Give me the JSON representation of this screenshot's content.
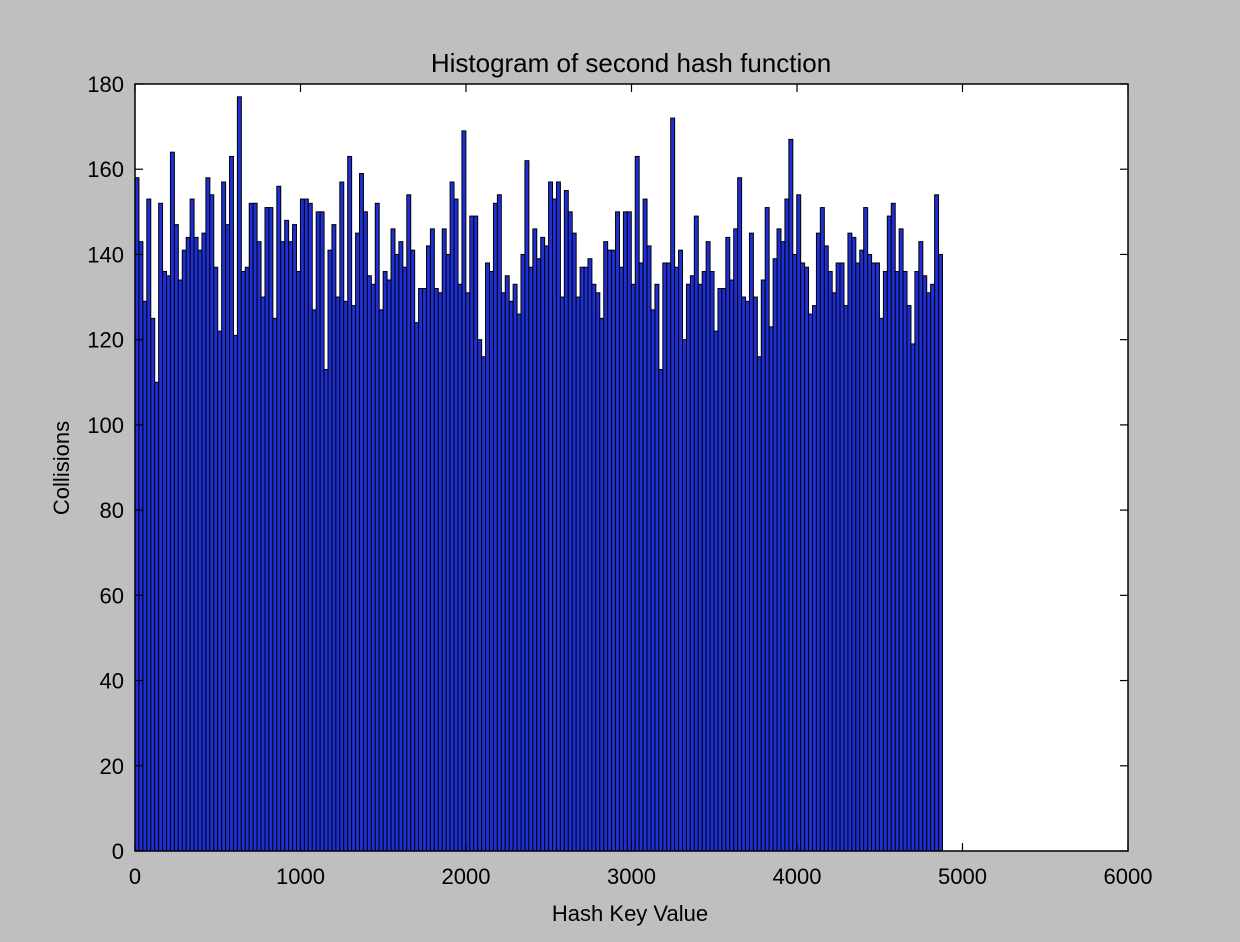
{
  "chart_data": {
    "type": "bar",
    "title": "Histogram of second hash function",
    "xlabel": "Hash Key Value",
    "ylabel": "Collisions",
    "xlim": [
      0,
      6000
    ],
    "ylim": [
      0,
      180
    ],
    "xticks": [
      0,
      1000,
      2000,
      3000,
      4000,
      5000,
      6000
    ],
    "yticks": [
      0,
      20,
      40,
      60,
      80,
      100,
      120,
      140,
      160,
      180
    ],
    "bin_width": 23.8,
    "bin_start": 0,
    "grid": false,
    "bar_color": "#1f2fd6",
    "values": [
      158,
      143,
      129,
      153,
      125,
      110,
      152,
      136,
      135,
      164,
      147,
      134,
      141,
      144,
      153,
      144,
      141,
      145,
      158,
      154,
      137,
      122,
      157,
      147,
      163,
      121,
      177,
      136,
      137,
      152,
      152,
      143,
      130,
      151,
      151,
      125,
      156,
      143,
      148,
      143,
      147,
      136,
      153,
      153,
      152,
      127,
      150,
      150,
      113,
      141,
      147,
      130,
      157,
      129,
      163,
      128,
      145,
      159,
      150,
      135,
      133,
      152,
      127,
      136,
      134,
      146,
      140,
      143,
      137,
      154,
      141,
      124,
      132,
      132,
      142,
      146,
      132,
      131,
      146,
      140,
      157,
      153,
      133,
      169,
      131,
      149,
      149,
      120,
      116,
      138,
      136,
      152,
      154,
      131,
      135,
      129,
      133,
      126,
      140,
      162,
      137,
      146,
      139,
      144,
      142,
      157,
      153,
      157,
      130,
      155,
      150,
      145,
      130,
      137,
      137,
      139,
      133,
      131,
      125,
      143,
      141,
      141,
      150,
      137,
      150,
      150,
      133,
      163,
      138,
      153,
      142,
      127,
      133,
      113,
      138,
      138,
      172,
      137,
      141,
      120,
      133,
      135,
      149,
      133,
      136,
      143,
      136,
      122,
      132,
      132,
      144,
      134,
      146,
      158,
      130,
      129,
      145,
      130,
      116,
      134,
      151,
      123,
      139,
      146,
      143,
      153,
      167,
      140,
      154,
      138,
      137,
      126,
      128,
      145,
      151,
      142,
      136,
      131,
      138,
      138,
      128,
      145,
      144,
      138,
      141,
      151,
      140,
      138,
      138,
      125,
      136,
      149,
      152,
      136,
      146,
      136,
      128,
      119,
      136,
      143,
      135,
      131,
      133,
      154,
      140
    ]
  }
}
